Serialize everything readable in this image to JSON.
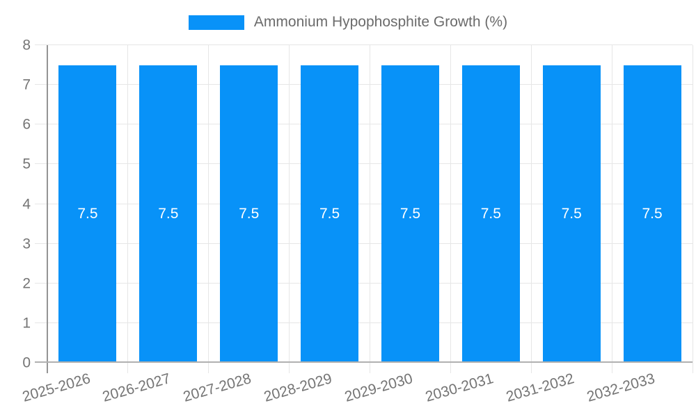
{
  "legend": {
    "label": "Ammonium Hypophosphite Growth (%)",
    "position": "top"
  },
  "chart_data": {
    "type": "bar",
    "title": "Ammonium Hypophosphite Growth (%)",
    "categories": [
      "2025-2026",
      "2026-2027",
      "2027-2028",
      "2028-2029",
      "2029-2030",
      "2030-2031",
      "2031-2032",
      "2032-2033"
    ],
    "values": [
      7.5,
      7.5,
      7.5,
      7.5,
      7.5,
      7.5,
      7.5,
      7.5
    ],
    "bar_labels": [
      "7.5",
      "7.5",
      "7.5",
      "7.5",
      "7.5",
      "7.5",
      "7.5",
      "7.5"
    ],
    "xlabel": "",
    "ylabel": "",
    "ylim": [
      0,
      8
    ],
    "yticks": [
      0,
      1,
      2,
      3,
      4,
      5,
      6,
      7,
      8
    ],
    "grid": true,
    "legend_position": "top",
    "colors": {
      "bar": "#0892f8",
      "grid": "#e6e6e6",
      "y_axis_line": "#949494",
      "baseline": "#b0b0b0",
      "tick_text": "#757575",
      "legend_text": "#6b6b6b",
      "bar_label_text": "#ffffff",
      "background": "#ffffff"
    }
  }
}
